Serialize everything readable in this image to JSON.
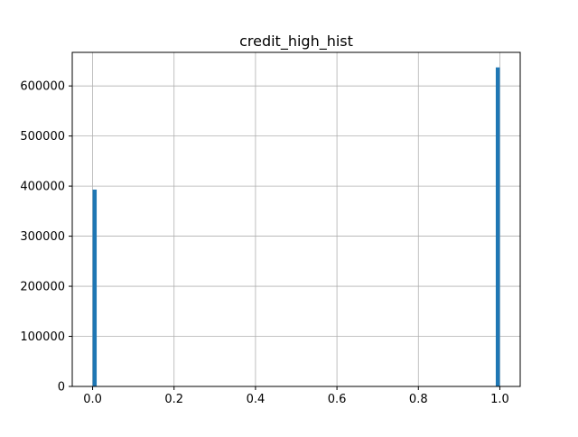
{
  "chart_data": {
    "type": "bar",
    "title": "credit_high_hist",
    "xlabel": "",
    "ylabel": "",
    "xlim": [
      -0.05,
      1.05
    ],
    "ylim": [
      0,
      667000
    ],
    "grid": true,
    "bar_color": "#1f77b4",
    "bins": [
      {
        "x_start": 0.0,
        "x_end": 0.01,
        "value": 393000
      },
      {
        "x_start": 0.99,
        "x_end": 1.0,
        "value": 637000
      }
    ],
    "x_ticks": [
      {
        "value": 0.0,
        "label": "0.0"
      },
      {
        "value": 0.2,
        "label": "0.2"
      },
      {
        "value": 0.4,
        "label": "0.4"
      },
      {
        "value": 0.6,
        "label": "0.6"
      },
      {
        "value": 0.8,
        "label": "0.8"
      },
      {
        "value": 1.0,
        "label": "1.0"
      }
    ],
    "y_ticks": [
      {
        "value": 0,
        "label": "0"
      },
      {
        "value": 100000,
        "label": "100000"
      },
      {
        "value": 200000,
        "label": "200000"
      },
      {
        "value": 300000,
        "label": "300000"
      },
      {
        "value": 400000,
        "label": "400000"
      },
      {
        "value": 500000,
        "label": "500000"
      },
      {
        "value": 600000,
        "label": "600000"
      }
    ]
  }
}
